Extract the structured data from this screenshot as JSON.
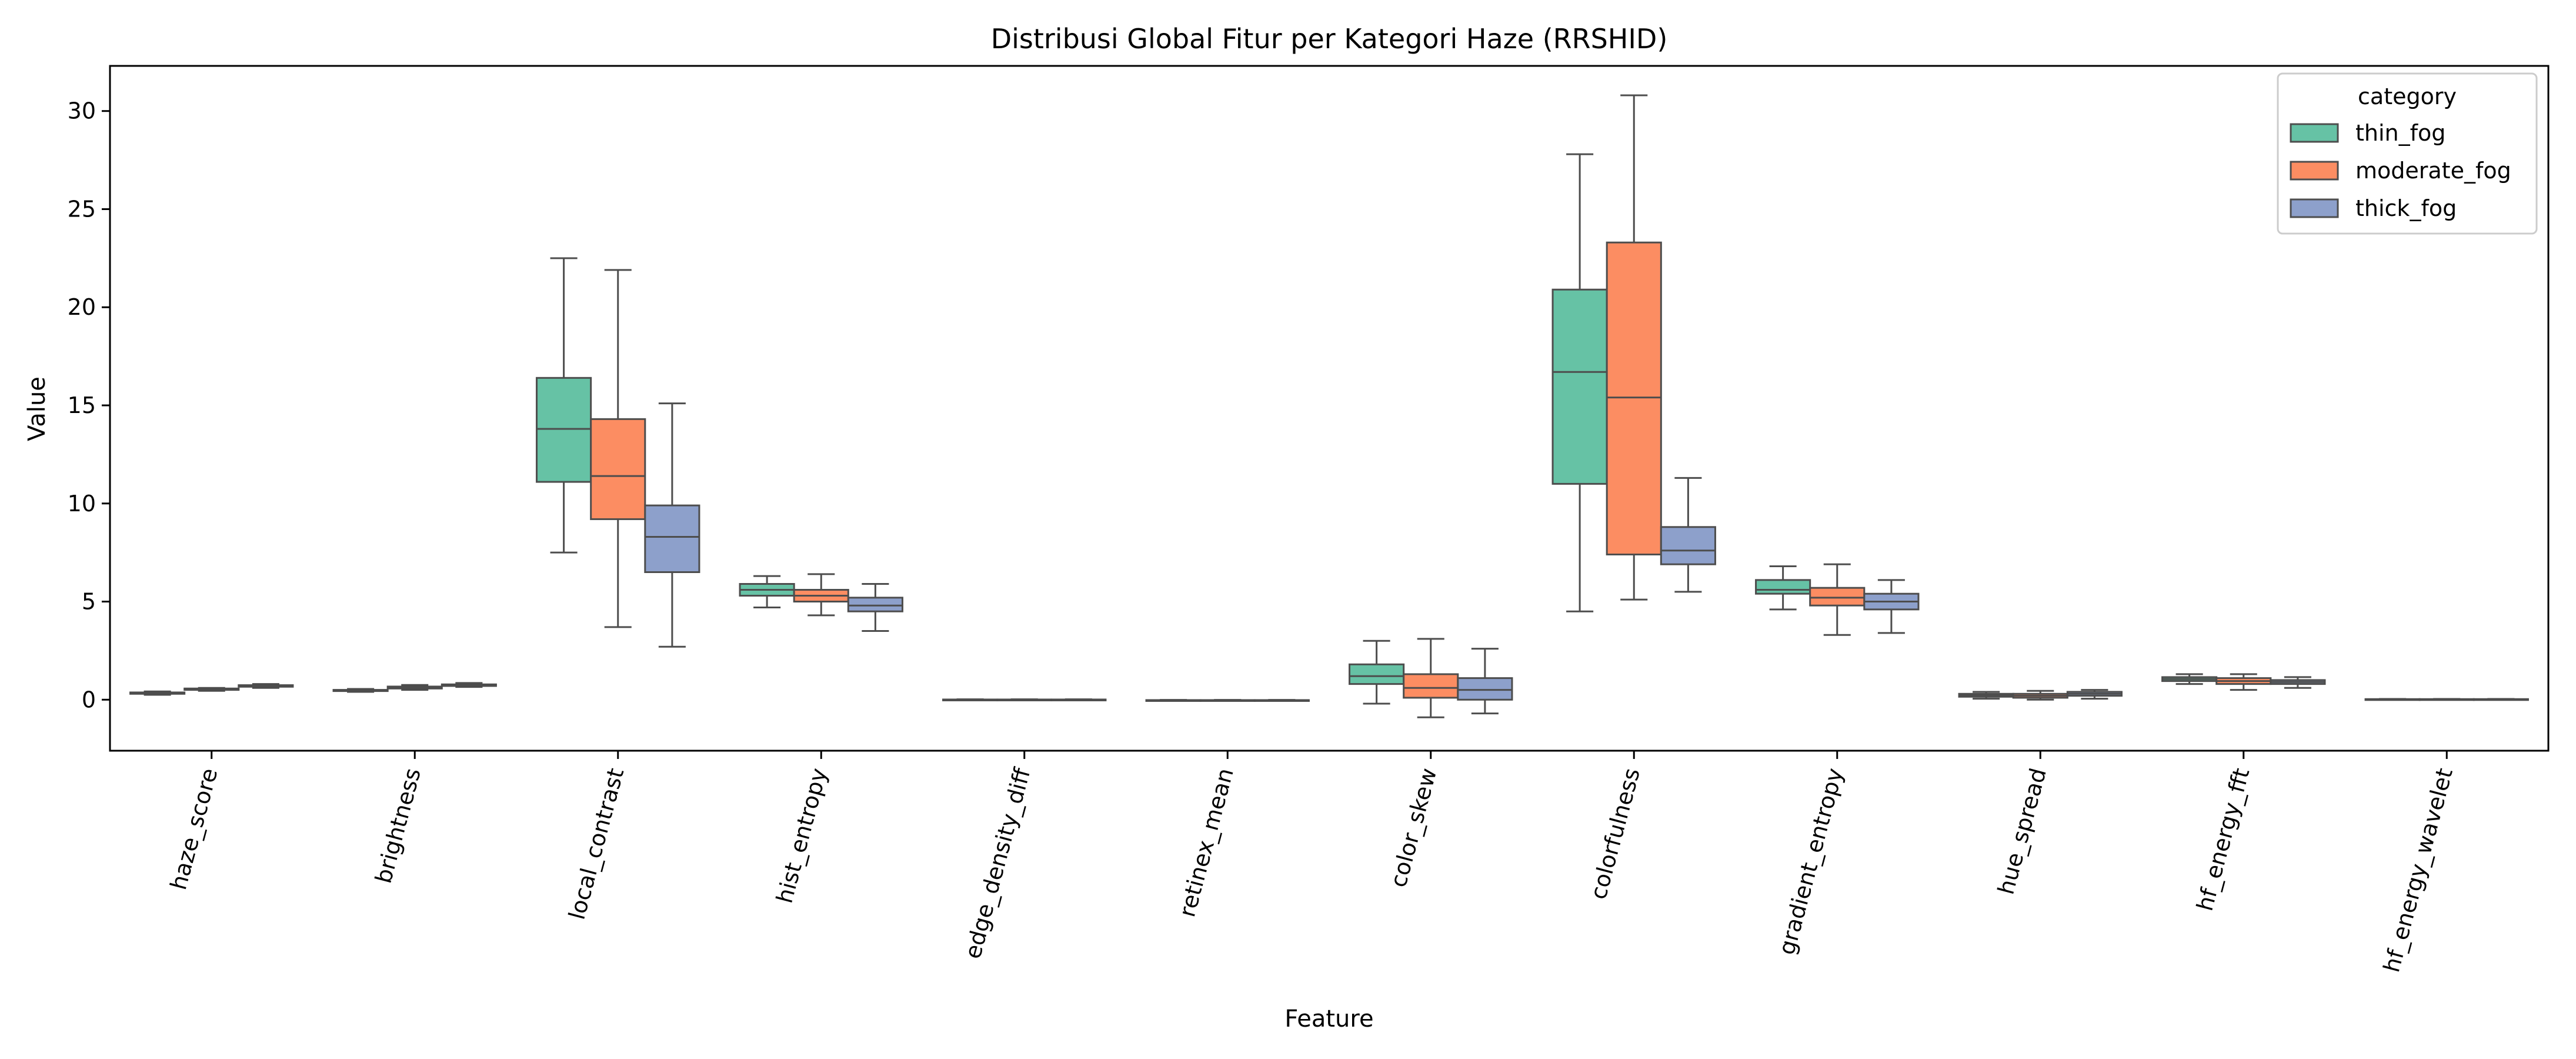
{
  "chart_data": {
    "type": "box",
    "title": "Distribusi Global Fitur per Kategori Haze (RRSHID)",
    "xlabel": "Feature",
    "ylabel": "Value",
    "ylim": [
      -2.6,
      32.3
    ],
    "yticks": [
      0,
      5,
      10,
      15,
      20,
      25,
      30
    ],
    "grid": false,
    "legend": {
      "title": "category",
      "placement": "top-right"
    },
    "categories": [
      "haze_score",
      "brightness",
      "local_contrast",
      "hist_entropy",
      "edge_density_diff",
      "retinex_mean",
      "color_skew",
      "colorfulness",
      "gradient_entropy",
      "hue_spread",
      "hf_energy_fft",
      "hf_energy_wavelet"
    ],
    "series": [
      {
        "name": "thin_fog",
        "color": "#66c2a5",
        "boxes": [
          {
            "whislo": 0.25,
            "q1": 0.3,
            "med": 0.33,
            "q3": 0.37,
            "whishi": 0.42
          },
          {
            "whislo": 0.4,
            "q1": 0.44,
            "med": 0.47,
            "q3": 0.5,
            "whishi": 0.55
          },
          {
            "whislo": 7.5,
            "q1": 11.1,
            "med": 13.8,
            "q3": 16.4,
            "whishi": 22.5
          },
          {
            "whislo": 4.7,
            "q1": 5.3,
            "med": 5.6,
            "q3": 5.9,
            "whishi": 6.3
          },
          {
            "whislo": -0.02,
            "q1": -0.01,
            "med": 0.0,
            "q3": 0.01,
            "whishi": 0.02
          },
          {
            "whislo": -0.05,
            "q1": -0.04,
            "med": -0.03,
            "q3": -0.02,
            "whishi": -0.01
          },
          {
            "whislo": -0.2,
            "q1": 0.8,
            "med": 1.2,
            "q3": 1.8,
            "whishi": 3.0
          },
          {
            "whislo": 4.5,
            "q1": 11.0,
            "med": 16.7,
            "q3": 20.9,
            "whishi": 27.8
          },
          {
            "whislo": 4.6,
            "q1": 5.4,
            "med": 5.6,
            "q3": 6.1,
            "whishi": 6.8
          },
          {
            "whislo": 0.05,
            "q1": 0.15,
            "med": 0.22,
            "q3": 0.3,
            "whishi": 0.4
          },
          {
            "whislo": 0.8,
            "q1": 0.95,
            "med": 1.05,
            "q3": 1.15,
            "whishi": 1.3
          },
          {
            "whislo": 0.0,
            "q1": 0.01,
            "med": 0.02,
            "q3": 0.03,
            "whishi": 0.04
          }
        ]
      },
      {
        "name": "moderate_fog",
        "color": "#fc8d62",
        "boxes": [
          {
            "whislo": 0.45,
            "q1": 0.5,
            "med": 0.53,
            "q3": 0.57,
            "whishi": 0.6
          },
          {
            "whislo": 0.5,
            "q1": 0.57,
            "med": 0.62,
            "q3": 0.67,
            "whishi": 0.75
          },
          {
            "whislo": 3.7,
            "q1": 9.2,
            "med": 11.4,
            "q3": 14.3,
            "whishi": 21.9
          },
          {
            "whislo": 4.3,
            "q1": 5.0,
            "med": 5.3,
            "q3": 5.6,
            "whishi": 6.4
          },
          {
            "whislo": -0.02,
            "q1": -0.01,
            "med": 0.0,
            "q3": 0.01,
            "whishi": 0.02
          },
          {
            "whislo": -0.05,
            "q1": -0.04,
            "med": -0.03,
            "q3": -0.02,
            "whishi": -0.01
          },
          {
            "whislo": -0.9,
            "q1": 0.1,
            "med": 0.6,
            "q3": 1.3,
            "whishi": 3.1
          },
          {
            "whislo": 5.1,
            "q1": 7.4,
            "med": 15.4,
            "q3": 23.3,
            "whishi": 30.8
          },
          {
            "whislo": 3.3,
            "q1": 4.8,
            "med": 5.2,
            "q3": 5.7,
            "whishi": 6.9
          },
          {
            "whislo": 0.0,
            "q1": 0.1,
            "med": 0.2,
            "q3": 0.3,
            "whishi": 0.45
          },
          {
            "whislo": 0.5,
            "q1": 0.8,
            "med": 0.95,
            "q3": 1.1,
            "whishi": 1.3
          },
          {
            "whislo": 0.0,
            "q1": 0.01,
            "med": 0.02,
            "q3": 0.03,
            "whishi": 0.04
          }
        ]
      },
      {
        "name": "thick_fog",
        "color": "#8da0cb",
        "boxes": [
          {
            "whislo": 0.6,
            "q1": 0.66,
            "med": 0.7,
            "q3": 0.74,
            "whishi": 0.8
          },
          {
            "whislo": 0.65,
            "q1": 0.7,
            "med": 0.74,
            "q3": 0.78,
            "whishi": 0.85
          },
          {
            "whislo": 2.7,
            "q1": 6.5,
            "med": 8.3,
            "q3": 9.9,
            "whishi": 15.1
          },
          {
            "whislo": 3.5,
            "q1": 4.5,
            "med": 4.8,
            "q3": 5.2,
            "whishi": 5.9
          },
          {
            "whislo": -0.02,
            "q1": -0.01,
            "med": 0.0,
            "q3": 0.01,
            "whishi": 0.02
          },
          {
            "whislo": -0.05,
            "q1": -0.04,
            "med": -0.03,
            "q3": -0.02,
            "whishi": -0.01
          },
          {
            "whislo": -0.7,
            "q1": 0.0,
            "med": 0.5,
            "q3": 1.1,
            "whishi": 2.6
          },
          {
            "whislo": 5.5,
            "q1": 6.9,
            "med": 7.6,
            "q3": 8.8,
            "whishi": 11.3
          },
          {
            "whislo": 3.4,
            "q1": 4.6,
            "med": 5.0,
            "q3": 5.4,
            "whishi": 6.1
          },
          {
            "whislo": 0.05,
            "q1": 0.2,
            "med": 0.3,
            "q3": 0.4,
            "whishi": 0.5
          },
          {
            "whislo": 0.6,
            "q1": 0.8,
            "med": 0.9,
            "q3": 1.0,
            "whishi": 1.15
          },
          {
            "whislo": 0.0,
            "q1": 0.01,
            "med": 0.02,
            "q3": 0.03,
            "whishi": 0.04
          }
        ]
      }
    ]
  }
}
